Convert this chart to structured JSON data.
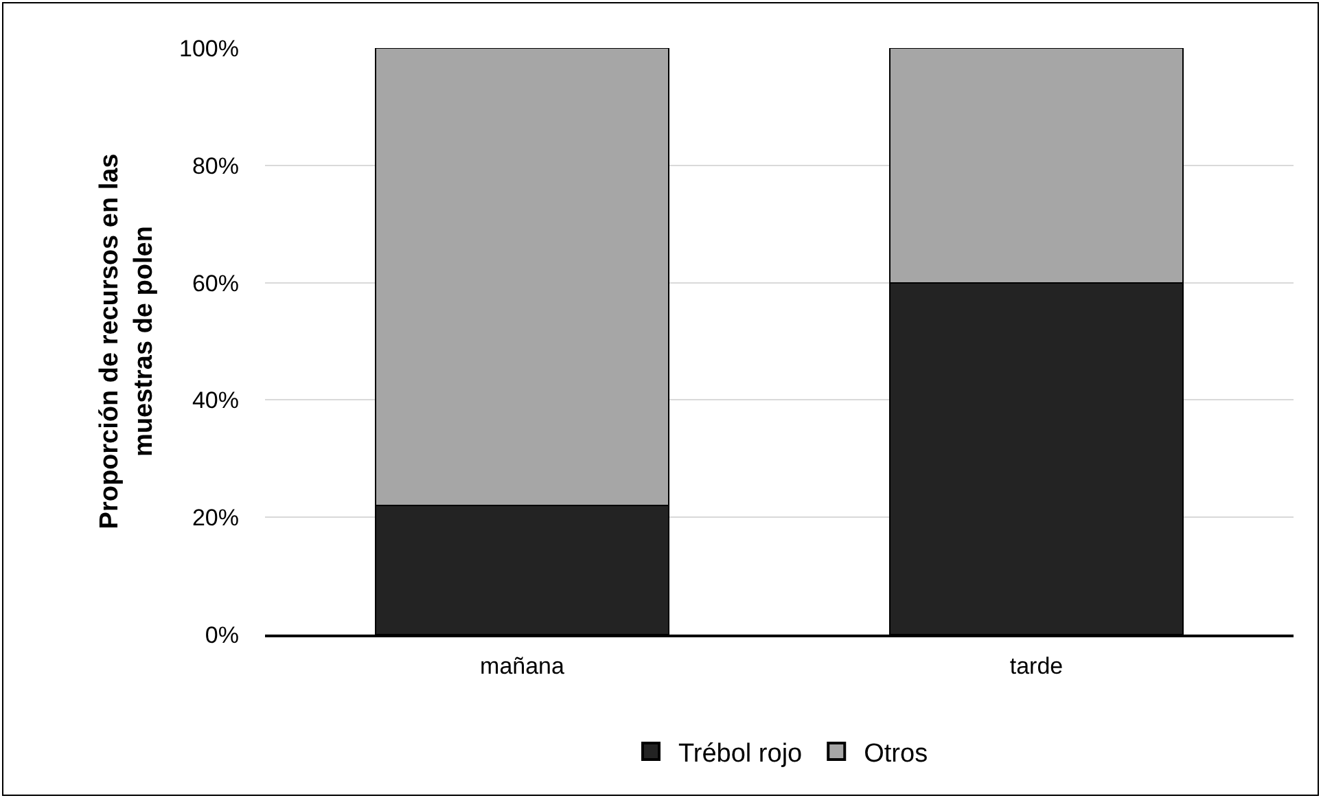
{
  "chart_data": {
    "type": "bar",
    "stacked": true,
    "ylabel": "Proporción de recursos en las muestras de polen",
    "categories": [
      "mañana",
      "tarde"
    ],
    "series": [
      {
        "name": "Trébol rojo",
        "color": "#232323",
        "values": [
          22,
          60
        ]
      },
      {
        "name": "Otros",
        "color": "#a6a6a6",
        "values": [
          78,
          40
        ]
      }
    ],
    "ylim": [
      0,
      100
    ],
    "yticks": [
      {
        "value": 0,
        "label": "0%"
      },
      {
        "value": 20,
        "label": "20%"
      },
      {
        "value": 40,
        "label": "40%"
      },
      {
        "value": 60,
        "label": "60%"
      },
      {
        "value": 80,
        "label": "80%"
      },
      {
        "value": 100,
        "label": "100%"
      }
    ],
    "grid": "y",
    "legend": "bottom"
  }
}
